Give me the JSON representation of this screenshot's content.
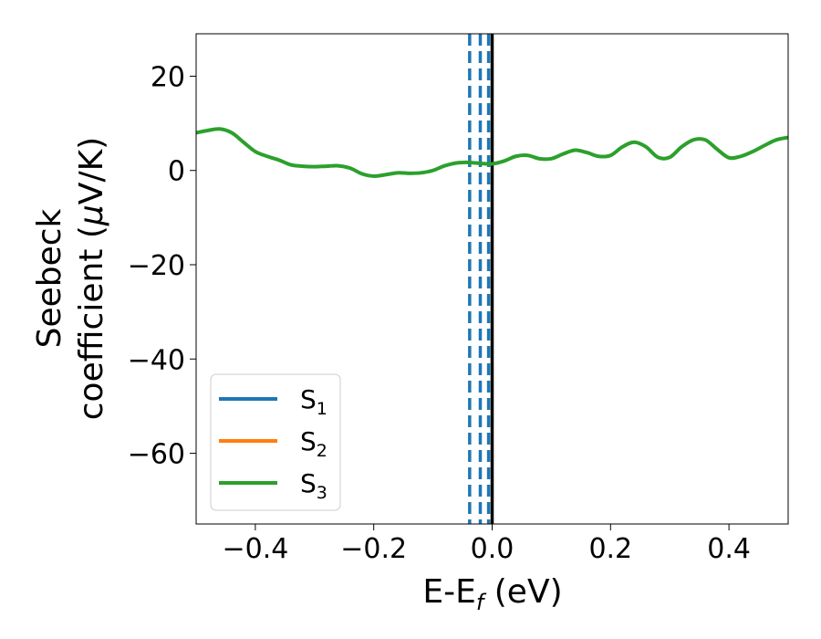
{
  "chart_data": {
    "type": "line",
    "xlabel": {
      "base": "E-E",
      "sub": "f",
      "rest": " (eV)"
    },
    "ylabel_line1": "Seebeck",
    "ylabel_line2": {
      "pre": "coefficient  (",
      "mu": "μ",
      "post": "V/K)"
    },
    "xlim": [
      -0.5,
      0.5
    ],
    "ylim": [
      -75,
      29
    ],
    "xticks": [
      -0.4,
      -0.2,
      0.0,
      0.2,
      0.4
    ],
    "xtick_labels": [
      "−0.4",
      "−0.2",
      "0.0",
      "0.2",
      "0.4"
    ],
    "yticks": [
      20,
      0,
      -20,
      -40,
      -60
    ],
    "ytick_labels": [
      "20",
      "0",
      "−20",
      "−40",
      "−60"
    ],
    "legend_position": "lower-left",
    "series": [
      {
        "name": "S",
        "sub": "1",
        "color": "#1f77b4",
        "x": [],
        "y": []
      },
      {
        "name": "S",
        "sub": "2",
        "color": "#ff7f0e",
        "x": [],
        "y": []
      },
      {
        "name": "S",
        "sub": "3",
        "color": "#2ca02c",
        "x": [
          -0.5,
          -0.48,
          -0.46,
          -0.44,
          -0.42,
          -0.4,
          -0.38,
          -0.36,
          -0.34,
          -0.32,
          -0.3,
          -0.28,
          -0.26,
          -0.24,
          -0.22,
          -0.2,
          -0.18,
          -0.16,
          -0.14,
          -0.12,
          -0.1,
          -0.08,
          -0.06,
          -0.04,
          -0.02,
          0.0,
          0.02,
          0.04,
          0.06,
          0.08,
          0.1,
          0.12,
          0.14,
          0.16,
          0.18,
          0.2,
          0.22,
          0.24,
          0.26,
          0.28,
          0.3,
          0.32,
          0.34,
          0.36,
          0.38,
          0.4,
          0.42,
          0.44,
          0.46,
          0.48,
          0.5
        ],
        "y": [
          8.0,
          8.5,
          8.8,
          8.0,
          6.0,
          4.0,
          3.0,
          2.2,
          1.2,
          0.9,
          0.8,
          0.9,
          1.0,
          0.5,
          -0.7,
          -1.2,
          -0.9,
          -0.5,
          -0.6,
          -0.5,
          0.0,
          1.0,
          1.6,
          1.7,
          1.5,
          1.4,
          2.0,
          3.0,
          3.2,
          2.5,
          2.5,
          3.5,
          4.3,
          3.8,
          3.0,
          3.2,
          5.0,
          6.0,
          5.0,
          2.8,
          2.8,
          5.0,
          6.5,
          6.5,
          4.5,
          2.7,
          3.0,
          4.0,
          5.3,
          6.5,
          7.0
        ]
      }
    ],
    "vlines": [
      {
        "x": 0.0,
        "color": "#000000",
        "style": "solid"
      },
      {
        "x": -0.006,
        "color": "#1f77b4",
        "style": "dashed"
      },
      {
        "x": -0.02,
        "color": "#1f77b4",
        "style": "dashed"
      },
      {
        "x": -0.038,
        "color": "#1f77b4",
        "style": "dashed"
      }
    ]
  }
}
